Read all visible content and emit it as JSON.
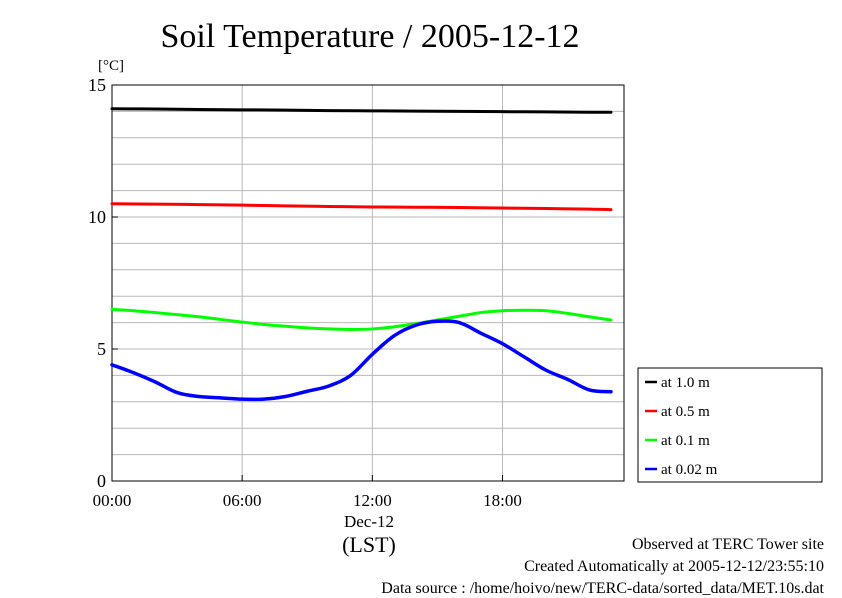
{
  "chart_data": {
    "type": "line",
    "title": "Soil Temperature / 2005-12-12",
    "ylabel": "[°C]",
    "xlabel": "(LST)",
    "date_label": "Dec-12",
    "ylim": [
      0,
      15
    ],
    "xlim": [
      0,
      23
    ],
    "y_ticks": [
      0,
      5,
      10,
      15
    ],
    "y_minor_step": 1,
    "x_ticks": [
      {
        "hour": 0,
        "label": "00:00"
      },
      {
        "hour": 6,
        "label": "06:00"
      },
      {
        "hour": 12,
        "label": "12:00"
      },
      {
        "hour": 18,
        "label": "18:00"
      }
    ],
    "grid": true,
    "legend_position": "right",
    "series": [
      {
        "name": "at 1.0 m",
        "color": "#000000",
        "x": [
          0,
          2,
          4,
          6,
          8,
          10,
          12,
          14,
          16,
          18,
          20,
          22,
          23
        ],
        "y": [
          14.1,
          14.09,
          14.07,
          14.06,
          14.05,
          14.03,
          14.02,
          14.01,
          14.0,
          13.99,
          13.98,
          13.97,
          13.97
        ]
      },
      {
        "name": "at 0.5 m",
        "color": "#ff0000",
        "x": [
          0,
          2,
          4,
          6,
          8,
          10,
          12,
          14,
          16,
          18,
          20,
          22,
          23
        ],
        "y": [
          10.5,
          10.49,
          10.47,
          10.45,
          10.42,
          10.4,
          10.38,
          10.37,
          10.36,
          10.34,
          10.32,
          10.3,
          10.28
        ]
      },
      {
        "name": "at 0.1 m",
        "color": "#00ff00",
        "x": [
          0,
          1,
          2,
          3,
          4,
          5,
          6,
          7,
          8,
          9,
          10,
          11,
          12,
          13,
          14,
          15,
          16,
          17,
          18,
          19,
          20,
          21,
          22,
          23
        ],
        "y": [
          6.5,
          6.45,
          6.38,
          6.3,
          6.22,
          6.12,
          6.02,
          5.93,
          5.86,
          5.8,
          5.76,
          5.74,
          5.76,
          5.84,
          5.96,
          6.1,
          6.24,
          6.38,
          6.45,
          6.47,
          6.45,
          6.35,
          6.22,
          6.1
        ]
      },
      {
        "name": "at 0.02 m",
        "color": "#0000ff",
        "x": [
          0,
          1,
          2,
          3,
          4,
          5,
          6,
          7,
          8,
          9,
          10,
          11,
          12,
          13,
          14,
          15,
          16,
          17,
          18,
          19,
          20,
          21,
          22,
          23
        ],
        "y": [
          4.4,
          4.1,
          3.75,
          3.35,
          3.2,
          3.15,
          3.1,
          3.1,
          3.2,
          3.4,
          3.6,
          4.0,
          4.8,
          5.5,
          5.9,
          6.05,
          6.0,
          5.6,
          5.2,
          4.7,
          4.2,
          3.85,
          3.45,
          3.38
        ]
      }
    ]
  },
  "footer": {
    "line1": "Observed at TERC Tower site",
    "line2": "Created Automatically at 2005-12-12/23:55:10",
    "line3": "Data source : /home/hoivo/new/TERC-data/sorted_data/MET.10s.dat"
  }
}
